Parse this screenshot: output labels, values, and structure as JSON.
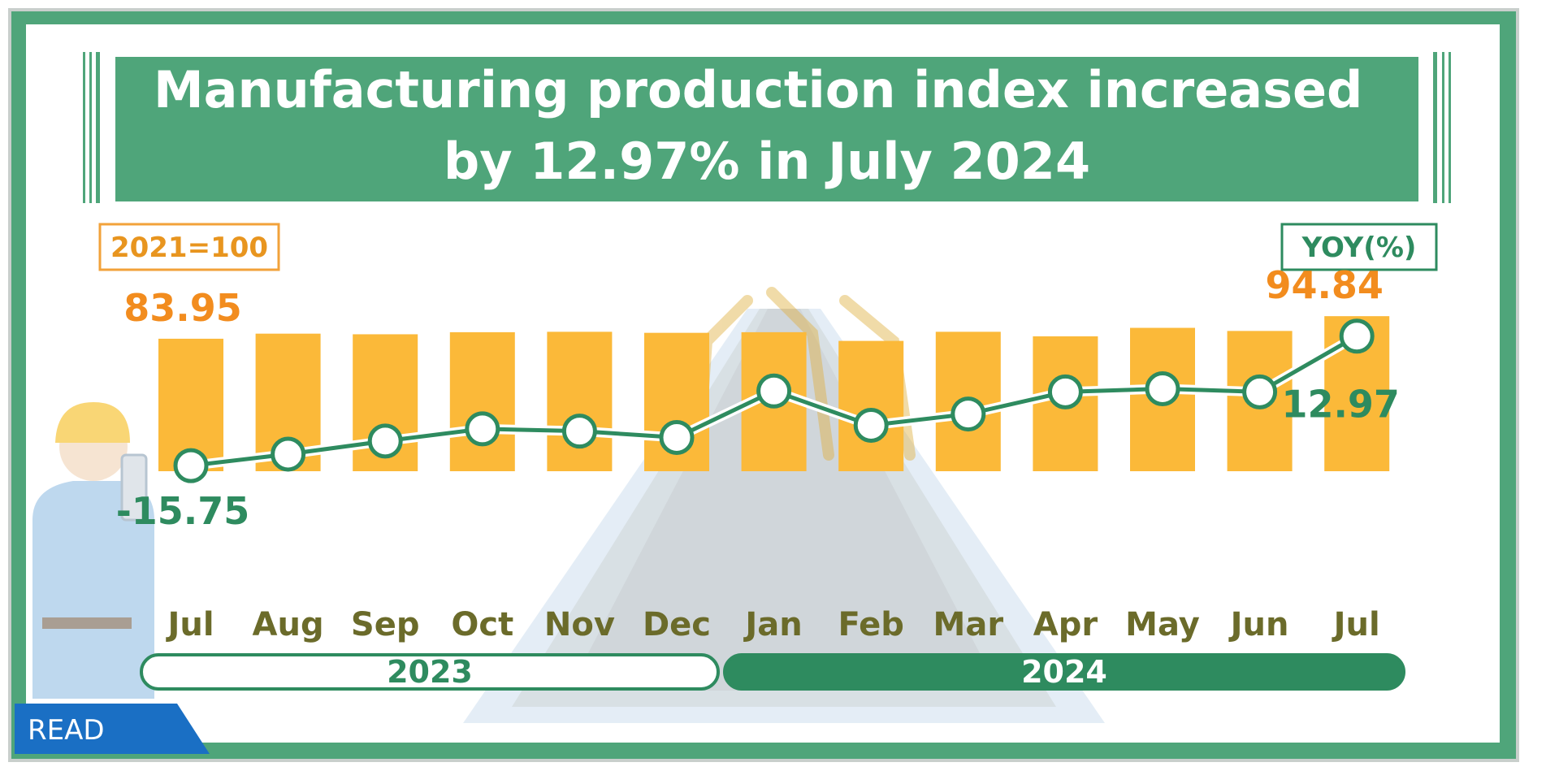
{
  "colors": {
    "frame": "#4fa57a",
    "title_bg": "#4fa57a",
    "bar": "#fbb939",
    "index_label": "#f28c1e",
    "yoy": "#2e8b5f",
    "month_text": "#6b6b2a",
    "read_badge": "#1a6fc4"
  },
  "badge": {
    "text": "READ"
  },
  "chart_data": {
    "type": "bar",
    "title": "Manufacturing production index increased by 12.97% in  July  2024",
    "index_unit_label": "2021=100",
    "yoy_unit_label": "YOY(%)",
    "categories": [
      "Jul",
      "Aug",
      "Sep",
      "Oct",
      "Nov",
      "Dec",
      "Jan",
      "Feb",
      "Mar",
      "Apr",
      "May",
      "Jun",
      "Jul"
    ],
    "years": [
      {
        "label": "2023",
        "months": 6
      },
      {
        "label": "2024",
        "months": 7
      }
    ],
    "series": [
      {
        "kind": "bar",
        "values": [
          83.95,
          86.4,
          86.1,
          87.1,
          87.3,
          86.8,
          87.1,
          82.9,
          87.3,
          85.1,
          89.2,
          87.7,
          94.84
        ],
        "labels": {
          "0": "83.95",
          "12": "94.84"
        }
      },
      {
        "kind": "line",
        "values": [
          -15.75,
          -13.2,
          -10.3,
          -7.6,
          -8.1,
          -9.5,
          0.8,
          -6.8,
          -4.3,
          0.6,
          1.3,
          0.6,
          12.97
        ],
        "labels": {
          "0": "-15.75",
          "12": "12.97"
        }
      }
    ]
  }
}
